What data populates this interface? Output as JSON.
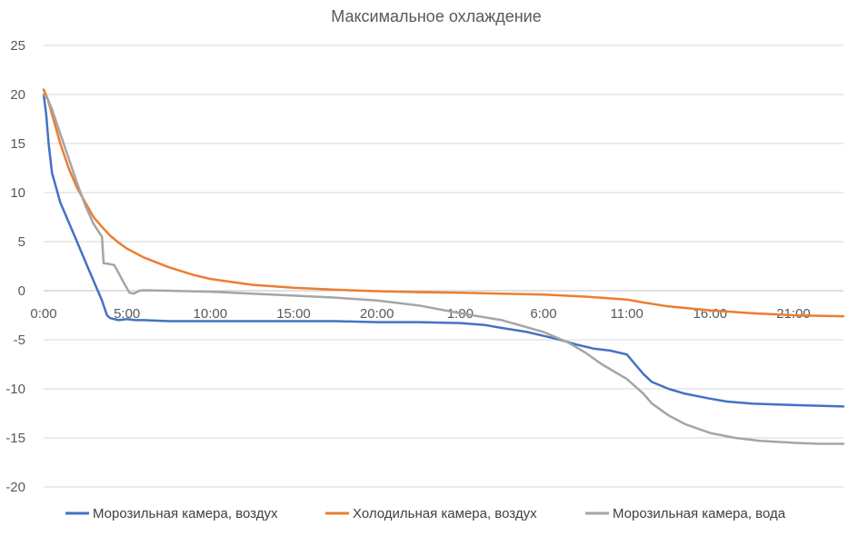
{
  "chart_data": {
    "type": "line",
    "title": "Максимальное охлаждение",
    "xlabel": "",
    "ylabel": "",
    "ylim": [
      -20,
      25
    ],
    "y_ticks": [
      25,
      20,
      15,
      10,
      5,
      0,
      -5,
      -10,
      -15,
      -20
    ],
    "x_range": [
      0,
      96
    ],
    "x_tick_labels": [
      {
        "x": 0,
        "label": "0:00"
      },
      {
        "x": 10,
        "label": "5:00"
      },
      {
        "x": 20,
        "label": "10:00"
      },
      {
        "x": 30,
        "label": "15:00"
      },
      {
        "x": 40,
        "label": "20:00"
      },
      {
        "x": 50,
        "label": "1:00"
      },
      {
        "x": 60,
        "label": "6:00"
      },
      {
        "x": 70,
        "label": "11:00"
      },
      {
        "x": 80,
        "label": "16:00"
      },
      {
        "x": 90,
        "label": "21:00"
      }
    ],
    "x_unit": "half-hours elapsed",
    "grid": "horizontal",
    "legend_position": "bottom",
    "series": [
      {
        "name": "Морозильная камера, воздух",
        "color": "#4472c4",
        "points": [
          [
            0,
            20.0
          ],
          [
            0.3,
            18.0
          ],
          [
            0.6,
            15.0
          ],
          [
            1,
            12.0
          ],
          [
            1.5,
            10.5
          ],
          [
            2,
            9.0
          ],
          [
            3,
            7.0
          ],
          [
            4,
            5.0
          ],
          [
            5,
            3.0
          ],
          [
            6,
            1.0
          ],
          [
            7,
            -1.0
          ],
          [
            7.6,
            -2.5
          ],
          [
            8,
            -2.8
          ],
          [
            9,
            -3.0
          ],
          [
            10,
            -2.9
          ],
          [
            11,
            -3.0
          ],
          [
            12,
            -3.0
          ],
          [
            15,
            -3.1
          ],
          [
            20,
            -3.1
          ],
          [
            25,
            -3.1
          ],
          [
            30,
            -3.1
          ],
          [
            35,
            -3.1
          ],
          [
            40,
            -3.2
          ],
          [
            45,
            -3.2
          ],
          [
            50,
            -3.3
          ],
          [
            53,
            -3.5
          ],
          [
            55,
            -3.8
          ],
          [
            58,
            -4.2
          ],
          [
            60,
            -4.6
          ],
          [
            62,
            -5.0
          ],
          [
            64,
            -5.5
          ],
          [
            66,
            -5.9
          ],
          [
            68,
            -6.1
          ],
          [
            70,
            -6.5
          ],
          [
            71,
            -7.5
          ],
          [
            72,
            -8.5
          ],
          [
            73,
            -9.3
          ],
          [
            75,
            -10.0
          ],
          [
            77,
            -10.5
          ],
          [
            80,
            -11.0
          ],
          [
            82,
            -11.3
          ],
          [
            85,
            -11.5
          ],
          [
            88,
            -11.6
          ],
          [
            92,
            -11.7
          ],
          [
            96,
            -11.8
          ]
        ]
      },
      {
        "name": "Холодильная камера, воздух",
        "color": "#ed7d31",
        "points": [
          [
            0,
            20.5
          ],
          [
            0.5,
            19.5
          ],
          [
            1,
            18.0
          ],
          [
            2,
            15.0
          ],
          [
            3,
            12.5
          ],
          [
            4,
            10.5
          ],
          [
            5,
            9.0
          ],
          [
            6,
            7.5
          ],
          [
            7,
            6.5
          ],
          [
            8,
            5.6
          ],
          [
            9,
            4.9
          ],
          [
            10,
            4.3
          ],
          [
            12,
            3.4
          ],
          [
            15,
            2.4
          ],
          [
            18,
            1.6
          ],
          [
            20,
            1.2
          ],
          [
            25,
            0.6
          ],
          [
            30,
            0.3
          ],
          [
            35,
            0.1
          ],
          [
            40,
            -0.05
          ],
          [
            45,
            -0.15
          ],
          [
            50,
            -0.2
          ],
          [
            55,
            -0.3
          ],
          [
            60,
            -0.4
          ],
          [
            65,
            -0.6
          ],
          [
            70,
            -0.9
          ],
          [
            72,
            -1.2
          ],
          [
            75,
            -1.6
          ],
          [
            80,
            -2.0
          ],
          [
            85,
            -2.3
          ],
          [
            90,
            -2.5
          ],
          [
            96,
            -2.6
          ]
        ]
      },
      {
        "name": "Морозильная камера, вода",
        "color": "#a5a5a5",
        "points": [
          [
            0,
            20.0
          ],
          [
            0.5,
            19.5
          ],
          [
            1,
            18.5
          ],
          [
            2,
            16.0
          ],
          [
            3,
            13.5
          ],
          [
            4,
            11.0
          ],
          [
            5,
            8.7
          ],
          [
            6,
            6.8
          ],
          [
            7,
            5.5
          ],
          [
            7.2,
            2.8
          ],
          [
            8,
            2.7
          ],
          [
            8.5,
            2.6
          ],
          [
            9.5,
            1.0
          ],
          [
            10.3,
            -0.2
          ],
          [
            10.8,
            -0.3
          ],
          [
            11.5,
            0.0
          ],
          [
            12,
            0.05
          ],
          [
            15,
            0.0
          ],
          [
            20,
            -0.1
          ],
          [
            25,
            -0.3
          ],
          [
            30,
            -0.5
          ],
          [
            35,
            -0.7
          ],
          [
            40,
            -1.0
          ],
          [
            45,
            -1.5
          ],
          [
            50,
            -2.3
          ],
          [
            55,
            -3.0
          ],
          [
            60,
            -4.2
          ],
          [
            63,
            -5.3
          ],
          [
            65,
            -6.3
          ],
          [
            67,
            -7.5
          ],
          [
            70,
            -9.0
          ],
          [
            72,
            -10.5
          ],
          [
            73,
            -11.5
          ],
          [
            75,
            -12.7
          ],
          [
            77,
            -13.6
          ],
          [
            80,
            -14.5
          ],
          [
            83,
            -15.0
          ],
          [
            86,
            -15.3
          ],
          [
            90,
            -15.5
          ],
          [
            93,
            -15.6
          ],
          [
            96,
            -15.6
          ]
        ]
      }
    ]
  }
}
